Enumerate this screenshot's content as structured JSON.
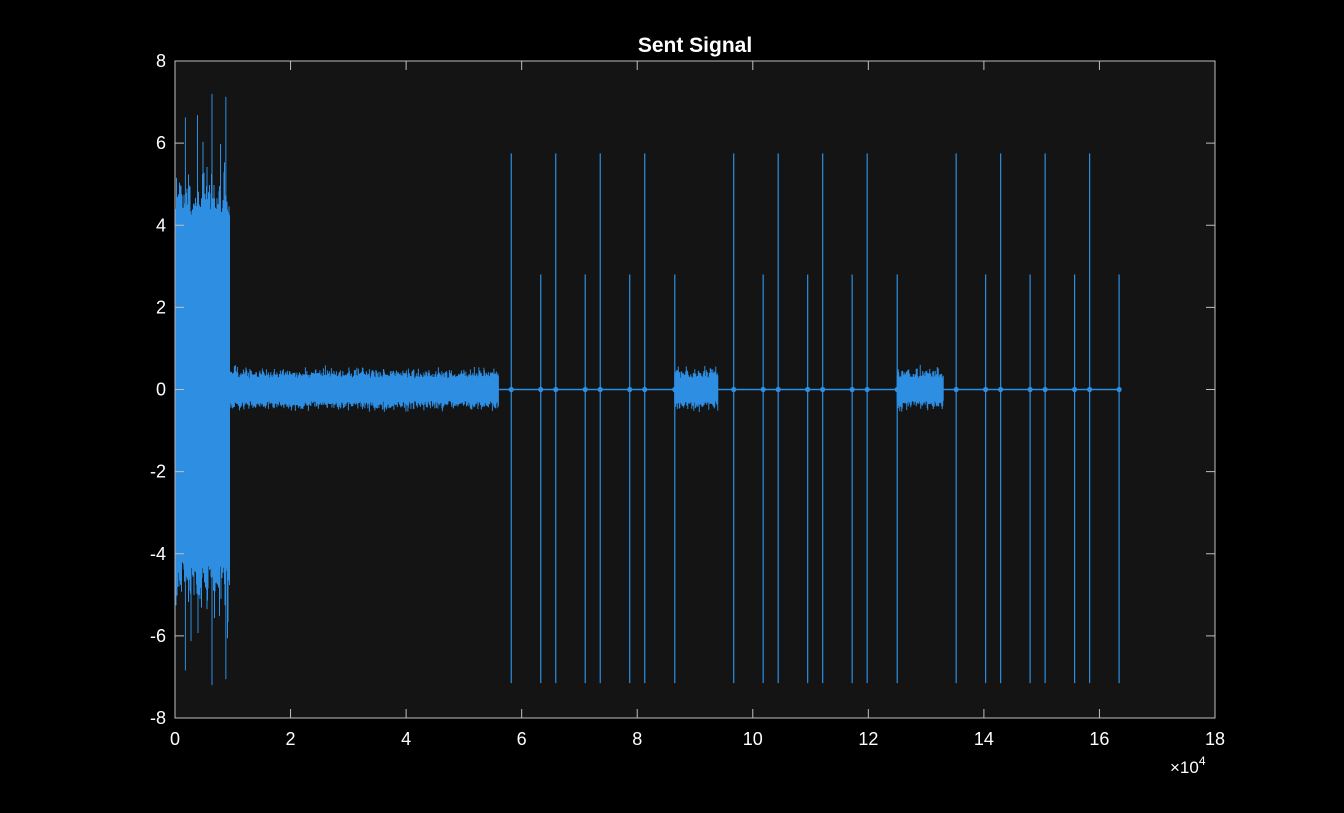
{
  "chart_data": {
    "type": "line",
    "title": "Sent Signal",
    "xlabel": "",
    "ylabel": "",
    "xlim": [
      0,
      180000
    ],
    "ylim": [
      -8,
      8
    ],
    "x_exponent_label": "×10",
    "x_exponent_power": "4",
    "xticks": [
      0,
      20000,
      40000,
      60000,
      80000,
      100000,
      120000,
      140000,
      160000,
      180000
    ],
    "xtick_labels": [
      "0",
      "2",
      "4",
      "6",
      "8",
      "10",
      "12",
      "14",
      "16",
      "18"
    ],
    "yticks": [
      -8,
      -6,
      -4,
      -2,
      0,
      2,
      4,
      6,
      8
    ],
    "ytick_labels": [
      "-8",
      "-6",
      "-4",
      "-2",
      "0",
      "2",
      "4",
      "6",
      "8"
    ],
    "grid": false,
    "colors": {
      "figure_bg": "#000000",
      "axes_bg": "#141414",
      "axes_edge": "#bfbfbf",
      "text": "#ffffff",
      "series": "#2d8ee2"
    },
    "series": [
      {
        "segments": [
          {
            "kind": "noise_burst",
            "x_start": 0,
            "x_end": 9500,
            "core_amplitude": 4.2,
            "peak_max": 7.2,
            "peak_min": -7.2
          },
          {
            "kind": "noise_band",
            "x_start": 9500,
            "x_end": 56000,
            "amplitude": 0.5,
            "peak": 0.7
          },
          {
            "kind": "noise_band",
            "x_start": 86500,
            "x_end": 94000,
            "amplitude": 0.5,
            "peak": 0.65
          },
          {
            "kind": "noise_band",
            "x_start": 125000,
            "x_end": 133000,
            "amplitude": 0.5,
            "peak": 0.65
          },
          {
            "kind": "baseline",
            "x_start": 56000,
            "x_end": 163500,
            "value": 0
          }
        ],
        "spikes": [
          {
            "x": 58200,
            "max": 5.75,
            "min": -7.15
          },
          {
            "x": 63300,
            "max": 2.8,
            "min": -7.15
          },
          {
            "x": 65900,
            "max": 5.75,
            "min": -7.15
          },
          {
            "x": 71000,
            "max": 2.8,
            "min": -7.15
          },
          {
            "x": 73600,
            "max": 5.75,
            "min": -7.15
          },
          {
            "x": 78700,
            "max": 2.8,
            "min": -7.15
          },
          {
            "x": 81300,
            "max": 5.75,
            "min": -7.15
          },
          {
            "x": 86500,
            "max": 2.8,
            "min": -7.15
          },
          {
            "x": 96700,
            "max": 5.75,
            "min": -7.15
          },
          {
            "x": 101800,
            "max": 2.8,
            "min": -7.15
          },
          {
            "x": 104400,
            "max": 5.75,
            "min": -7.15
          },
          {
            "x": 109500,
            "max": 2.8,
            "min": -7.15
          },
          {
            "x": 112100,
            "max": 5.75,
            "min": -7.15
          },
          {
            "x": 117200,
            "max": 2.8,
            "min": -7.15
          },
          {
            "x": 119800,
            "max": 5.75,
            "min": -7.15
          },
          {
            "x": 125000,
            "max": 2.8,
            "min": -7.15
          },
          {
            "x": 135200,
            "max": 5.75,
            "min": -7.15
          },
          {
            "x": 140300,
            "max": 2.8,
            "min": -7.15
          },
          {
            "x": 142900,
            "max": 5.75,
            "min": -7.15
          },
          {
            "x": 148000,
            "max": 2.8,
            "min": -7.15
          },
          {
            "x": 150600,
            "max": 5.75,
            "min": -7.15
          },
          {
            "x": 155700,
            "max": 2.8,
            "min": -7.15
          },
          {
            "x": 158300,
            "max": 5.75,
            "min": -7.15
          },
          {
            "x": 163400,
            "max": 2.8,
            "min": -7.15
          }
        ]
      }
    ]
  }
}
